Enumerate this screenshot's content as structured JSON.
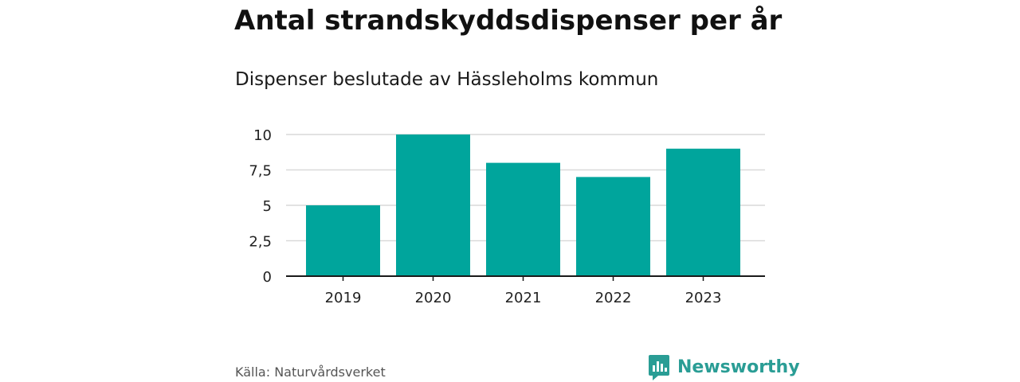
{
  "header": {
    "title": "Antal strandskyddsdispenser per år",
    "subtitle": "Dispenser beslutade av Hässleholms kommun"
  },
  "footer": {
    "source": "Källa: Naturvårdsverket",
    "brand_name": "Newsworthy",
    "brand_icon": "bar-chart-speech-bubble-icon"
  },
  "colors": {
    "bar": "#00a59c",
    "grid": "#d9d9d9",
    "axis": "#1a1a1a",
    "brand": "#2a9d95"
  },
  "chart_data": {
    "type": "bar",
    "title": "Antal strandskyddsdispenser per år",
    "subtitle": "Dispenser beslutade av Hässleholms kommun",
    "xlabel": "",
    "ylabel": "",
    "categories": [
      "2019",
      "2020",
      "2021",
      "2022",
      "2023"
    ],
    "values": [
      5,
      10,
      8,
      7,
      9
    ],
    "ylim": [
      0,
      10
    ],
    "yticks": [
      0,
      2.5,
      5,
      7.5,
      10
    ],
    "ytick_labels": [
      "0",
      "2,5",
      "5",
      "7,5",
      "10"
    ],
    "grid": true,
    "legend": "none"
  }
}
